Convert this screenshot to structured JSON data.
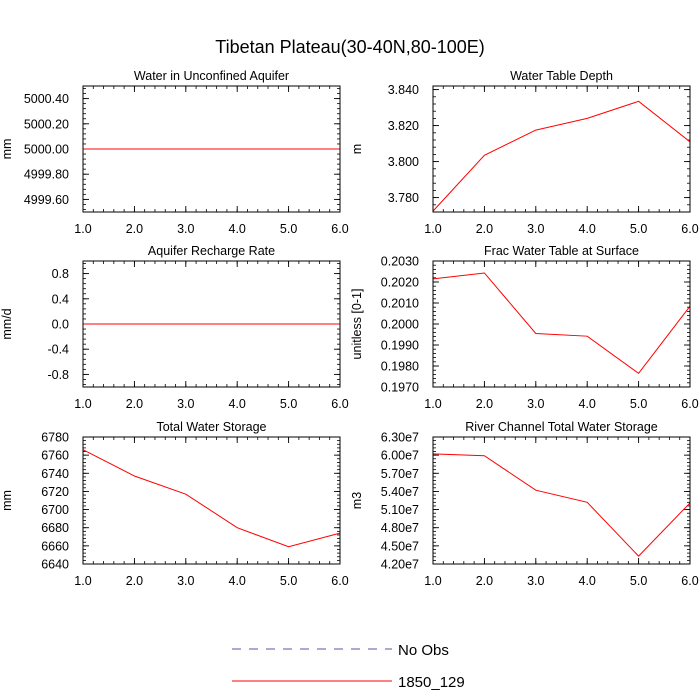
{
  "figure": {
    "title": "Tibetan Plateau(30-40N,80-100E)"
  },
  "chart_data": [
    {
      "type": "line",
      "title": "Water in Unconfined Aquifer",
      "xlabel": "",
      "ylabel": "mm",
      "x": [
        1,
        2,
        3,
        4,
        5,
        6
      ],
      "xlim": [
        1,
        6
      ],
      "ylim": [
        4999.5,
        5000.5
      ],
      "xticks": [
        1,
        2,
        3,
        4,
        5,
        6
      ],
      "xtick_labels": [
        "1.0",
        "2.0",
        "3.0",
        "4.0",
        "5.0",
        "6.0"
      ],
      "yticks": [
        4999.6,
        4999.8,
        5000.0,
        5000.2,
        5000.4
      ],
      "ytick_labels": [
        "4999.60",
        "4999.80",
        "5000.00",
        "5000.20",
        "5000.40"
      ],
      "series": [
        {
          "name": "1850_129",
          "color": "#ff0000",
          "values": [
            5000,
            5000,
            5000,
            5000,
            5000,
            5000
          ]
        }
      ]
    },
    {
      "type": "line",
      "title": "Water Table Depth",
      "xlabel": "",
      "ylabel": "m",
      "x": [
        1,
        2,
        3,
        4,
        5,
        6
      ],
      "xlim": [
        1,
        6
      ],
      "ylim": [
        3.772,
        3.842
      ],
      "xticks": [
        1,
        2,
        3,
        4,
        5,
        6
      ],
      "xtick_labels": [
        "1.0",
        "2.0",
        "3.0",
        "4.0",
        "5.0",
        "6.0"
      ],
      "yticks": [
        3.78,
        3.8,
        3.82,
        3.84
      ],
      "ytick_labels": [
        "3.780",
        "3.800",
        "3.820",
        "3.840"
      ],
      "series": [
        {
          "name": "1850_129",
          "color": "#ff0000",
          "values": [
            3.7725,
            3.8035,
            3.8175,
            3.824,
            3.8335,
            3.811
          ]
        }
      ]
    },
    {
      "type": "line",
      "title": "Aquifer Recharge Rate",
      "xlabel": "",
      "ylabel": "mm/d",
      "x": [
        1,
        2,
        3,
        4,
        5,
        6
      ],
      "xlim": [
        1,
        6
      ],
      "ylim": [
        -1,
        1
      ],
      "xticks": [
        1,
        2,
        3,
        4,
        5,
        6
      ],
      "xtick_labels": [
        "1.0",
        "2.0",
        "3.0",
        "4.0",
        "5.0",
        "6.0"
      ],
      "yticks": [
        -0.8,
        -0.4,
        0,
        0.4,
        0.8
      ],
      "ytick_labels": [
        "-0.8",
        "-0.4",
        "0.0",
        "0.4",
        "0.8"
      ],
      "series": [
        {
          "name": "1850_129",
          "color": "#ff0000",
          "values": [
            0,
            0,
            0,
            0,
            0,
            0
          ]
        }
      ]
    },
    {
      "type": "line",
      "title": "Frac Water Table at Surface",
      "xlabel": "",
      "ylabel": "unitless [0-1]",
      "x": [
        1,
        2,
        3,
        4,
        5,
        6
      ],
      "xlim": [
        1,
        6
      ],
      "ylim": [
        0.197,
        0.203
      ],
      "xticks": [
        1,
        2,
        3,
        4,
        5,
        6
      ],
      "xtick_labels": [
        "1.0",
        "2.0",
        "3.0",
        "4.0",
        "5.0",
        "6.0"
      ],
      "yticks": [
        0.197,
        0.198,
        0.199,
        0.2,
        0.201,
        0.202,
        0.203
      ],
      "ytick_labels": [
        "0.1970",
        "0.1980",
        "0.1990",
        "0.2000",
        "0.2010",
        "0.2020",
        "0.2030"
      ],
      "series": [
        {
          "name": "1850_129",
          "color": "#ff0000",
          "values": [
            0.20215,
            0.20243,
            0.19955,
            0.19942,
            0.19765,
            0.20085
          ]
        }
      ]
    },
    {
      "type": "line",
      "title": "Total Water Storage",
      "xlabel": "",
      "ylabel": "mm",
      "x": [
        1,
        2,
        3,
        4,
        5,
        6
      ],
      "xlim": [
        1,
        6
      ],
      "ylim": [
        6640,
        6780
      ],
      "xticks": [
        1,
        2,
        3,
        4,
        5,
        6
      ],
      "xtick_labels": [
        "1.0",
        "2.0",
        "3.0",
        "4.0",
        "5.0",
        "6.0"
      ],
      "yticks": [
        6640,
        6660,
        6680,
        6700,
        6720,
        6740,
        6760,
        6780
      ],
      "ytick_labels": [
        "6640",
        "6660",
        "6680",
        "6700",
        "6720",
        "6740",
        "6760",
        "6780"
      ],
      "series": [
        {
          "name": "1850_129",
          "color": "#ff0000",
          "values": [
            6766,
            6737,
            6717,
            6680,
            6659,
            6674
          ]
        }
      ]
    },
    {
      "type": "line",
      "title": "River Channel Total Water Storage",
      "xlabel": "",
      "ylabel": "m3",
      "x": [
        1,
        2,
        3,
        4,
        5,
        6
      ],
      "xlim": [
        1,
        6
      ],
      "ylim": [
        42000000,
        63000000
      ],
      "xticks": [
        1,
        2,
        3,
        4,
        5,
        6
      ],
      "xtick_labels": [
        "1.0",
        "2.0",
        "3.0",
        "4.0",
        "5.0",
        "6.0"
      ],
      "yticks": [
        42000000,
        45000000,
        48000000,
        51000000,
        54000000,
        57000000,
        60000000,
        63000000
      ],
      "ytick_labels": [
        "4.20e7",
        "4.50e7",
        "4.80e7",
        "5.10e7",
        "5.40e7",
        "5.70e7",
        "6.00e7",
        "6.30e7"
      ],
      "series": [
        {
          "name": "1850_129",
          "color": "#ff0000",
          "values": [
            60200000,
            59900000,
            54200000,
            52200000,
            43300000,
            52100000
          ]
        }
      ]
    }
  ],
  "legend": {
    "placement": "bottom-center",
    "entries": [
      {
        "label": "No Obs",
        "color": "#5555aa",
        "style": "dashed"
      },
      {
        "label": "1850_129",
        "color": "#ff0000",
        "style": "solid"
      }
    ]
  }
}
